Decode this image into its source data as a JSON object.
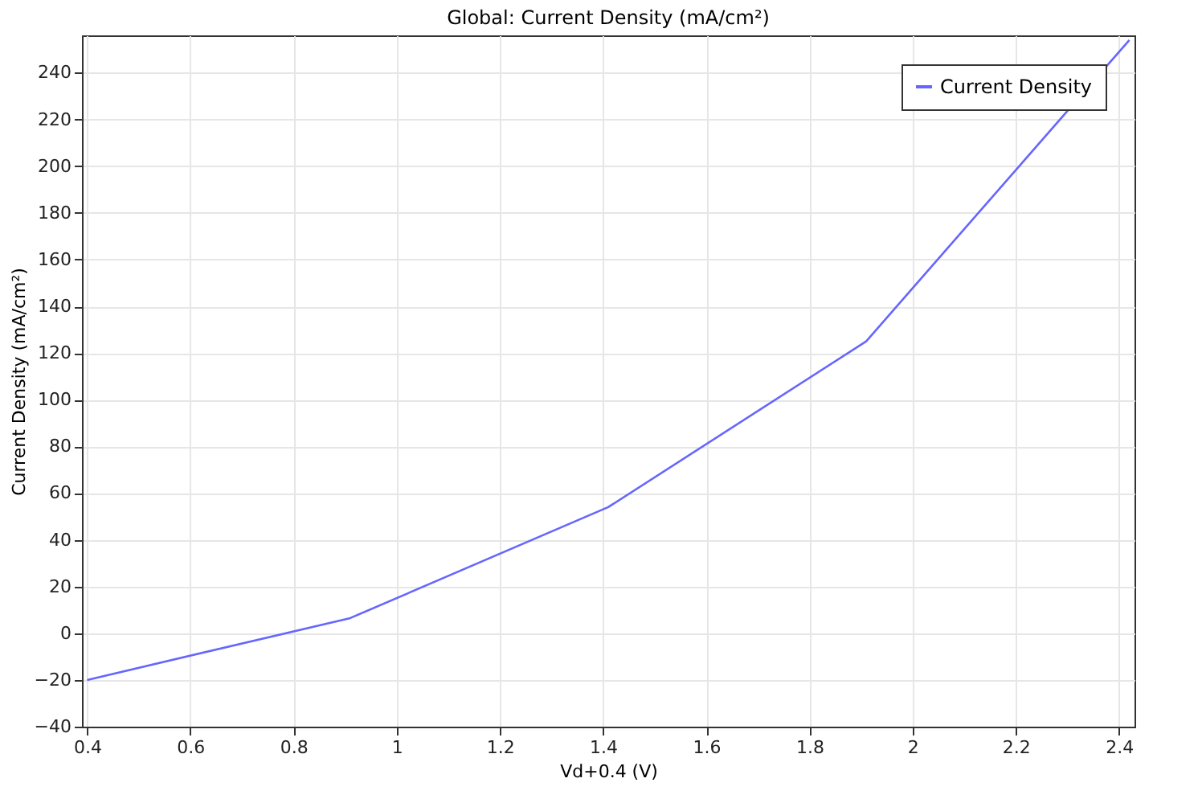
{
  "chart_data": {
    "type": "line",
    "title": "Global: Current Density (mA/cm²)",
    "xlabel": "Vd+0.4 (V)",
    "ylabel": "Current Density (mA/cm²)",
    "x": [
      0.4,
      0.91,
      1.41,
      1.91,
      2.42
    ],
    "series": [
      {
        "name": "Current Density",
        "color": "#6666ff",
        "values": [
          -20,
          6.5,
          54,
          125,
          254
        ]
      }
    ],
    "xlim": [
      0.39,
      2.43
    ],
    "xticks": [
      0.4,
      0.6,
      0.8,
      1,
      1.2,
      1.4,
      1.6,
      1.8,
      2,
      2.2,
      2.4
    ],
    "ylim": [
      -40,
      256
    ],
    "yticks": [
      -40,
      -20,
      0,
      20,
      40,
      60,
      80,
      100,
      120,
      140,
      160,
      180,
      200,
      220,
      240
    ],
    "grid": true,
    "legend": "top right",
    "marker": "none",
    "line_style": "solid"
  }
}
